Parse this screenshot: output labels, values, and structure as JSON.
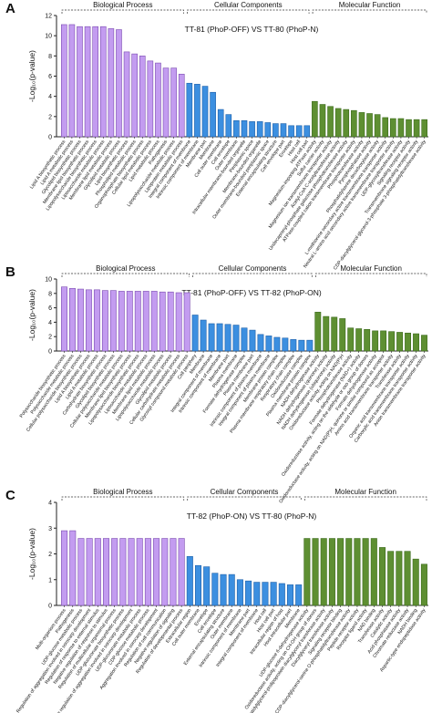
{
  "chart_data": [
    {
      "type": "bar",
      "panel_label": "A",
      "title": "TT-81 (PhoP-OFF) VS TT-80 (PhoP-N)",
      "ylabel": "-Log₁₀(p-value)",
      "ylim": [
        0,
        12
      ],
      "yticks": [
        0,
        2,
        4,
        6,
        8,
        10,
        12
      ],
      "groups": [
        {
          "name": "Biological Process",
          "color": "#c39cf0",
          "categories": [
            "Lipid A biosynthetic process",
            "Lipid A metabolic process",
            "Glycolipid biosynthetic process",
            "Membrane lipid biosynthetic process",
            "Lipopolysaccharide biosynthetic process",
            "Liposaccharide metabolic process",
            "Membrane lipid metabolic process",
            "Glycolipid metabolic process",
            "Lipid biosynthetic process",
            "Phospholipid metabolic process",
            "Organophosphate biosynthetic process",
            "Cellular lipid metabolic process",
            "Lipid metabolic process",
            "Pathogenesis",
            "Lipopolysaccharide metabolic process",
            "Lipoprotein metabolic process"
          ],
          "values": [
            11.1,
            11.1,
            10.9,
            10.9,
            10.9,
            10.9,
            10.7,
            10.6,
            8.4,
            8.2,
            8.0,
            7.5,
            7.3,
            6.8,
            6.8,
            6.2
          ]
        },
        {
          "name": "Cellular Components",
          "color": "#3c8fe0",
          "categories": [
            "Integral component of membrane",
            "Intrinsic component of membrane",
            "Membrane part",
            "Membrane",
            "Cell outer membrane",
            "Cell envelope",
            "Outer membrane",
            "Intracellular membrane-bounded organelle",
            "Periplasmic space",
            "Membrane-bounded organelle",
            "Outer membrane-bounded periplasmic space",
            "External encapsulating structure",
            "Cell envelope part",
            "Envelope",
            "Host cell",
            "Host cell part"
          ],
          "values": [
            5.3,
            5.2,
            5.0,
            4.4,
            2.7,
            2.2,
            1.6,
            1.6,
            1.5,
            1.5,
            1.4,
            1.3,
            1.3,
            1.1,
            1.1,
            1.1
          ]
        },
        {
          "name": "Molecular Function",
          "color": "#5e8f32",
          "categories": [
            "Magnesium-importing ATPase activity",
            "Sulfur carrier activity",
            "Magnesium ion transmembrane transporter activity",
            "Acetyl-CoA C-acetyltransferase activity",
            "Undecaprenyl-phosphate galactose phosphotransferase activity",
            "ATPase-coupled cation transmembrane transporter activity",
            "Phosphotransferase activity",
            "Pyrophosphatase activity",
            "Phosphatidylserine decarboxylase activity",
            "L-methionine secondary active transmembrane transporter activity",
            "Neutral L-amino acid secondary active transmembrane transporter activity",
            "UDP-glycosyltransferase activity",
            "Signaling receptor activity",
            "Transmembrane signaling receptor activity",
            "CDP-diacylglycerol-glycerol-3-phosphate 3-phosphatidyltransferase activity"
          ],
          "values": [
            3.5,
            3.2,
            3.0,
            2.8,
            2.7,
            2.6,
            2.4,
            2.3,
            2.2,
            1.9,
            1.8,
            1.8,
            1.7,
            1.7,
            1.7
          ]
        }
      ]
    },
    {
      "type": "bar",
      "panel_label": "B",
      "title": "TT-81 (PhoP-OFF) VS TT-82 (PhoP-ON)",
      "ylabel": "-Log₁₀(p-value)",
      "ylim": [
        0,
        10
      ],
      "yticks": [
        0,
        2,
        4,
        6,
        8,
        10
      ],
      "groups": [
        {
          "name": "Biological Process",
          "color": "#c39cf0",
          "categories": [
            "Polysaccharide biosynthetic process",
            "Polysaccharide metabolic process",
            "Cellular polysaccharide biosynthetic process",
            "Lipid A biosynthetic process",
            "Lipid A metabolic process",
            "Carbohydrate biosynthetic process",
            "Glycolipid biosynthetic process",
            "Cellular polysaccharide metabolic process",
            "Membrane lipid biosynthetic process",
            "Lipopolysaccharide biosynthetic process",
            "Liposaccharide metabolic process",
            "Membrane lipid metabolic process",
            "Lipopolysaccharide metabolic process",
            "Glycolipid metabolic process",
            "Cellular carbohydrate metabolic process",
            "Glycosyl compound metabolic process"
          ],
          "values": [
            8.9,
            8.7,
            8.6,
            8.5,
            8.5,
            8.4,
            8.4,
            8.3,
            8.3,
            8.3,
            8.3,
            8.3,
            8.2,
            8.2,
            8.1,
            8.1
          ]
        },
        {
          "name": "Cellular Components",
          "color": "#3c8fe0",
          "categories": [
            "Cell periphery",
            "Membrane",
            "Integral component of membrane",
            "Intrinsic component of membrane",
            "Membrane part",
            "Plasma membrane",
            "Formate dehydrogenase complex",
            "Plasma membrane part",
            "Intrinsic component of plasma membrane",
            "Integral component of plasma membrane",
            "Membrane protein complex",
            "Plasma membrane respiratory chain complex",
            "Respiratory chain complex",
            "Oxidoreductase complex",
            "Plasma membrane protein complex"
          ],
          "values": [
            5.0,
            4.3,
            3.8,
            3.8,
            3.7,
            3.6,
            3.2,
            2.9,
            2.3,
            2.1,
            1.9,
            1.8,
            1.6,
            1.5,
            1.5
          ]
        },
        {
          "name": "Molecular Function",
          "color": "#5e8f32",
          "categories": [
            "NADH dehydrogenase activity",
            "NADH dehydrogenase (quinone) activity",
            "NADH dehydrogenase (ubiquinone) activity",
            "Oxidoreductase activity, acting on NAD(P)H",
            "Phosphotransferase activity",
            "Formate dehydrogenase (NAD+) activity",
            "Oxidoreductase activity, acting on the aldehyde or oxo group of donors",
            "Formate dehydrogenase activity",
            "Oxidoreductase activity, acting on NAD(P)H, quinone or similar compound as acceptor",
            "Amino acid transmembrane transporter activity",
            "Transferase activity",
            "Organic acid transmembrane transporter activity",
            "Carboxylic acid transmembrane transporter activity",
            "Anion transmembrane transporter activity"
          ],
          "values": [
            5.4,
            4.8,
            4.7,
            4.5,
            3.2,
            3.1,
            3.0,
            2.8,
            2.8,
            2.7,
            2.6,
            2.5,
            2.4,
            2.2
          ]
        }
      ]
    },
    {
      "type": "bar",
      "panel_label": "C",
      "title": "TT-82 (PhoP-ON) VS TT-80 (PhoP-N)",
      "ylabel": "-Log₁₀(p-value)",
      "ylim": [
        0,
        4
      ],
      "yticks": [
        0,
        1,
        2,
        3,
        4
      ],
      "groups": [
        {
          "name": "Biological Process",
          "color": "#c39cf0",
          "categories": [
            "Multi-organism process",
            "Pathogenesis",
            "UDP-glucose metabolic process",
            "Regulation of aggregation involved in sorocarp development",
            "Regulation of response to external stimulus",
            "Negative regulation of response to stimulus",
            "Regulation of multicellular organismal process",
            "UDP-glucuronate biosynthetic process",
            "Negative regulation of aggregation involved in sorocarp development",
            "UDP-glucuronate metabolic process",
            "CDP-glucose metabolic process",
            "Aggregation involved in sorocarp development",
            "Regulation of cell communication",
            "Negative regulation of signaling",
            "Regulation of developmental process"
          ],
          "values": [
            2.9,
            2.9,
            2.6,
            2.6,
            2.6,
            2.6,
            2.6,
            2.6,
            2.6,
            2.6,
            2.6,
            2.6,
            2.6,
            2.6,
            2.6
          ]
        },
        {
          "name": "Cellular Components",
          "color": "#3c8fe0",
          "categories": [
            "Extracellular region",
            "Cell outer membrane",
            "Envelope",
            "Cell envelope",
            "External encapsulating structure",
            "Outer membrane",
            "Intrinsic component of membrane",
            "Membrane part",
            "Integral component of membrane",
            "Host cell",
            "Host cell part",
            "Intracellular region of host",
            "Host intracellular part",
            "Membrane"
          ],
          "values": [
            1.9,
            1.55,
            1.5,
            1.25,
            1.2,
            1.2,
            1.0,
            0.95,
            0.9,
            0.9,
            0.9,
            0.85,
            0.8,
            0.8
          ]
        },
        {
          "name": "Molecular Function",
          "color": "#5e8f32",
          "categories": [
            "UDP-glucose 6-dehydrogenase activity",
            "Oxidoreductase activity, acting on CH-OH group of donors",
            "Phosphatidylglycerol-prolipoprotein diacylglyceryl transferase activity",
            "Diacylglyceryl transferase activity",
            "Signaling receptor binding",
            "CDP-diacylglycerol-serine O-phosphatidyltransferase activity",
            "Peptide receptor activity",
            "Receptor ligand activity",
            "NAD binding",
            "Transferase activity",
            "Catalytic activity",
            "Acid phosphatase activity",
            "Chromate reductase activity",
            "NADH binding",
            "Aspartic-type endopeptidase activity"
          ],
          "values": [
            2.6,
            2.6,
            2.6,
            2.6,
            2.6,
            2.6,
            2.6,
            2.6,
            2.6,
            2.25,
            2.1,
            2.1,
            2.1,
            1.8,
            1.6
          ]
        }
      ]
    }
  ]
}
